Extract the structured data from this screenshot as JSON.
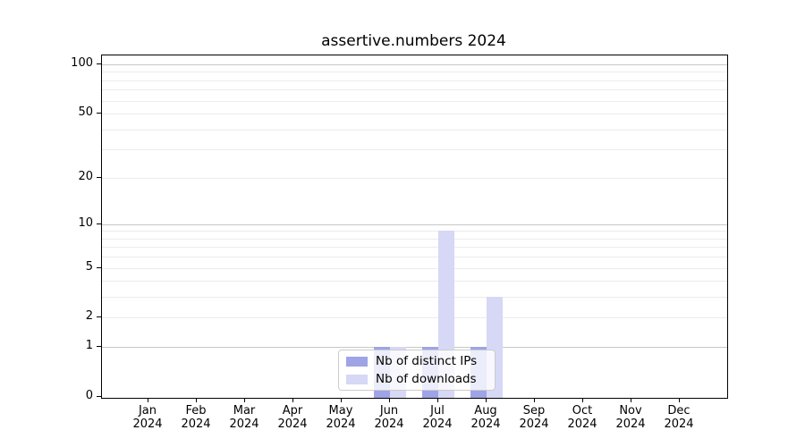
{
  "title": "assertive.numbers 2024",
  "chart_data": {
    "type": "bar",
    "title": "assertive.numbers 2024",
    "scale": "log1p",
    "grid": true,
    "ylim": [
      0,
      100
    ],
    "xlabel": "",
    "ylabel": "",
    "categories": [
      "Jan",
      "Feb",
      "Mar",
      "Apr",
      "May",
      "Jun",
      "Jul",
      "Aug",
      "Sep",
      "Oct",
      "Nov",
      "Dec"
    ],
    "category_year": "2024",
    "y_ticks": [
      0,
      1,
      2,
      5,
      10,
      20,
      50,
      100
    ],
    "y_minor_gridlines": [
      2,
      3,
      4,
      5,
      6,
      7,
      8,
      9,
      20,
      30,
      40,
      50,
      60,
      70,
      80,
      90
    ],
    "y_major_gridlines": [
      1,
      10,
      100
    ],
    "series": [
      {
        "name": "Nb of distinct IPs",
        "color": "#9ea4e6",
        "values": [
          0,
          0,
          0,
          0,
          0,
          1,
          1,
          1,
          0,
          0,
          0,
          0
        ]
      },
      {
        "name": "Nb of downloads",
        "color": "#d6d8f5",
        "values": [
          0,
          0,
          0,
          0,
          0,
          1,
          9,
          3,
          0,
          0,
          0,
          0
        ]
      }
    ],
    "legend_position": "lower center",
    "colors": {
      "axis": "#000000",
      "major_gridline": "#c8c8c8",
      "minor_gridline": "#ececec",
      "legend_border": "#cccccc"
    }
  }
}
